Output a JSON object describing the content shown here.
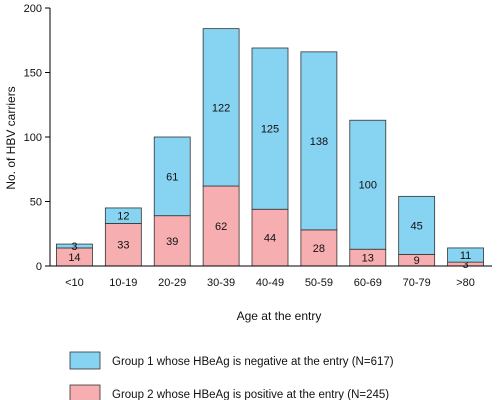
{
  "chart_data": {
    "type": "bar",
    "stacked": true,
    "title": "",
    "xlabel": "Age at the entry",
    "ylabel": "No. of HBV carriers",
    "ylim": [
      0,
      200
    ],
    "yticks": [
      0,
      50,
      100,
      150,
      200
    ],
    "grid": false,
    "categories": [
      "<10",
      "10-19",
      "20-29",
      "30-39",
      "40-49",
      "50-59",
      "60-69",
      "70-79",
      ">80"
    ],
    "series": [
      {
        "name": "Group 2 whose HBeAg is positive at the entry (N=245)",
        "color": "#f6aeb1",
        "values": [
          14,
          33,
          39,
          62,
          44,
          28,
          13,
          9,
          3
        ]
      },
      {
        "name": "Group 1  whose HBeAg is negative at the entry (N=617)",
        "color": "#87d3f2",
        "values": [
          3,
          12,
          61,
          122,
          125,
          138,
          100,
          45,
          11
        ]
      }
    ],
    "legend": {
      "placement": "bottom",
      "order": [
        1,
        0
      ]
    }
  }
}
